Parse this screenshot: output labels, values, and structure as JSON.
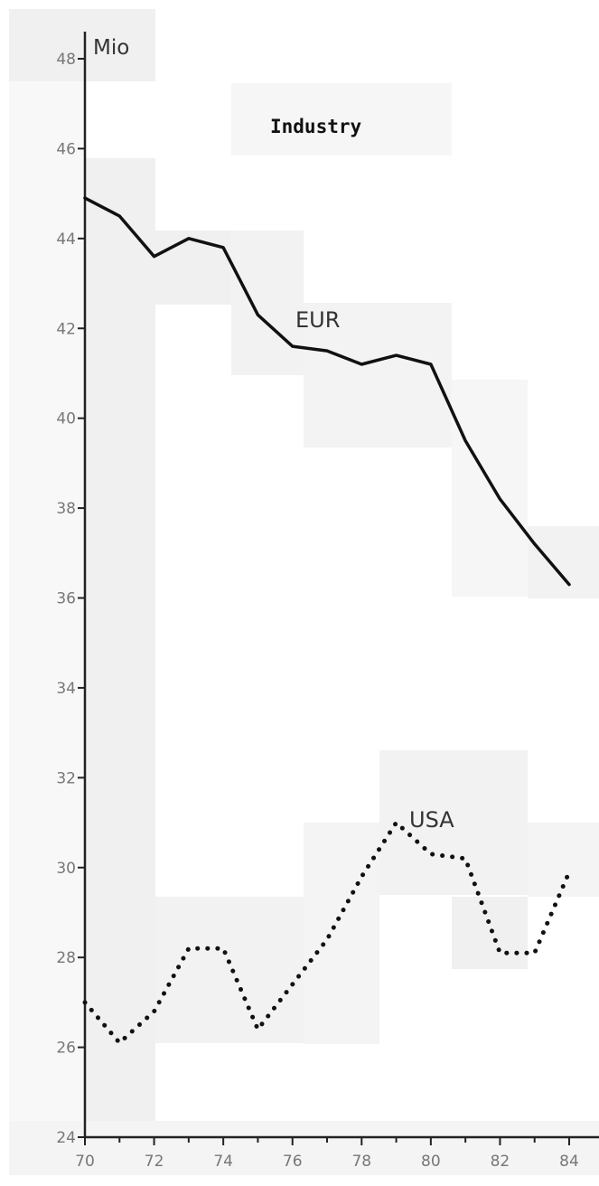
{
  "chart_data": {
    "type": "line",
    "title": "Industry",
    "ylabel": "Mio",
    "xlabel": "",
    "x": [
      70,
      71,
      72,
      73,
      74,
      75,
      76,
      77,
      78,
      79,
      80,
      81,
      82,
      83,
      84
    ],
    "xlim": [
      70,
      84
    ],
    "ylim": [
      24,
      48
    ],
    "x_ticks": [
      "70",
      "72",
      "74",
      "76",
      "78",
      "80",
      "82",
      "84"
    ],
    "y_ticks": [
      "24",
      "26",
      "28",
      "30",
      "32",
      "34",
      "36",
      "38",
      "40",
      "42",
      "44",
      "46",
      "48"
    ],
    "grid": false,
    "legend": "none",
    "series": [
      {
        "name": "EUR",
        "style": "solid",
        "color": "#111111",
        "values": [
          44.9,
          44.5,
          43.6,
          44.0,
          43.8,
          42.3,
          41.6,
          41.5,
          41.2,
          41.4,
          41.2,
          39.5,
          38.2,
          37.2,
          36.3
        ]
      },
      {
        "name": "USA",
        "style": "dotted",
        "color": "#111111",
        "values": [
          27.0,
          26.1,
          26.8,
          28.2,
          28.2,
          26.4,
          27.4,
          28.4,
          29.8,
          31.0,
          30.3,
          30.2,
          28.1,
          28.1,
          29.9
        ]
      }
    ]
  }
}
